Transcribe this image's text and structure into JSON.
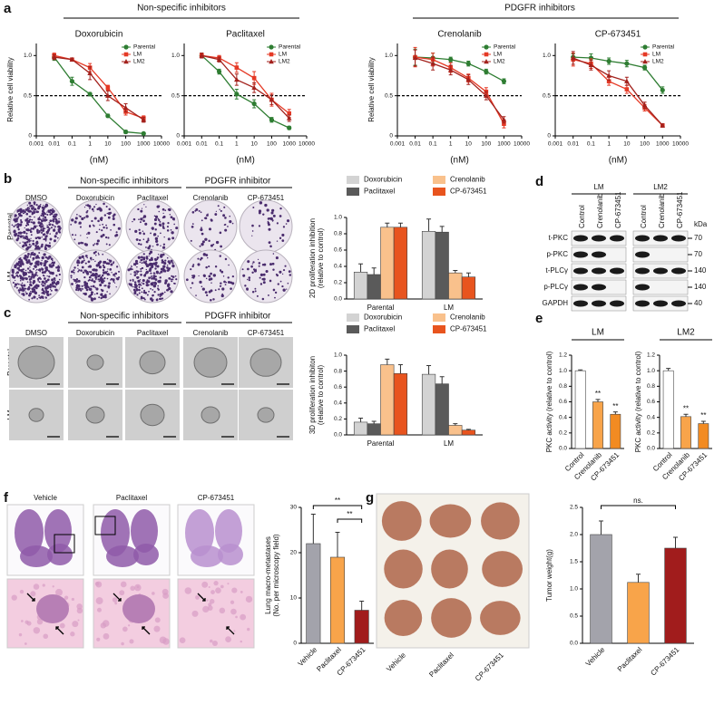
{
  "panel_labels": [
    "a",
    "b",
    "c",
    "d",
    "e",
    "f",
    "g"
  ],
  "panel_a_groups": [
    "Non-specific inhibitors",
    "PDGFR inhibitors"
  ],
  "panel_b_images": {
    "groups": [
      "Non-specific inhibitors",
      "PDGFR inhibitor"
    ],
    "columns": [
      "DMSO",
      "Doxorubicin",
      "Paclitaxel",
      "Crenolanib",
      "CP-673451"
    ],
    "rows": [
      "Parental",
      "LM"
    ]
  },
  "panel_c_images": {
    "groups": [
      "Non-specific inhibitors",
      "PDGFR inhibitor"
    ],
    "columns": [
      "DMSO",
      "Doxorubicin",
      "Paclitaxel",
      "Crenolanib",
      "CP-673451"
    ],
    "rows": [
      "Parental",
      "LM"
    ]
  },
  "panel_d_blot": {
    "groups": [
      "LM",
      "LM2"
    ],
    "columns": [
      "Control",
      "Crenolanib",
      "CP-673451"
    ],
    "rows": [
      "t-PKC",
      "p-PKC",
      "t-PLCγ",
      "p-PLCγ",
      "GAPDH"
    ],
    "unit": "kDa",
    "sizes": [
      70,
      70,
      140,
      140,
      40
    ]
  },
  "panel_f_images": {
    "columns": [
      "Vehicle",
      "Paclitaxel",
      "CP-673451"
    ]
  },
  "panel_g_image": {
    "columns": [
      "Vehicle",
      "Paclitaxel",
      "CP-673451"
    ]
  },
  "chart_data": [
    {
      "type": "line",
      "title": "Doxorubicin",
      "xlabel": "(nM)",
      "ylabel": "Relative cell viability",
      "xscale": "log",
      "x": [
        0.01,
        0.1,
        1,
        10,
        100,
        1000
      ],
      "xlim": [
        0.001,
        10000
      ],
      "xticks": [
        0.001,
        0.01,
        0.1,
        1,
        10,
        100,
        1000,
        10000
      ],
      "ylim": [
        0,
        1.15
      ],
      "yticks": [
        0,
        0.5,
        {
          "value": 1,
          "label": "1.0"
        }
      ],
      "reference_line": 0.5,
      "legend": "upper right",
      "series": [
        {
          "name": "Parental",
          "color": "#2e7d32",
          "marker": "circle",
          "values": [
            0.98,
            0.68,
            0.52,
            0.25,
            0.05,
            0.03
          ],
          "errors": [
            0.04,
            0.05,
            0.02,
            0.02,
            0.02,
            0.01
          ]
        },
        {
          "name": "LM",
          "color": "#e53925",
          "marker": "square",
          "values": [
            1.0,
            0.95,
            0.85,
            0.6,
            0.3,
            0.22
          ],
          "errors": [
            0.03,
            0.02,
            0.05,
            0.03,
            0.04,
            0.03
          ]
        },
        {
          "name": "LM2",
          "color": "#a3211c",
          "marker": "triangle",
          "values": [
            0.98,
            0.95,
            0.78,
            0.5,
            0.35,
            0.2
          ],
          "errors": [
            0.03,
            0.02,
            0.08,
            0.06,
            0.05,
            0.03
          ]
        }
      ]
    },
    {
      "type": "line",
      "title": "Paclitaxel",
      "xlabel": "(nM)",
      "xscale": "log",
      "x": [
        0.01,
        0.1,
        1,
        10,
        100,
        1000
      ],
      "xlim": [
        0.001,
        10000
      ],
      "xticks": [
        0.001,
        0.01,
        0.1,
        1,
        10,
        100,
        1000,
        10000
      ],
      "ylim": [
        0,
        1.15
      ],
      "yticks": [
        0,
        0.5,
        {
          "value": 1,
          "label": "1.0"
        }
      ],
      "reference_line": 0.5,
      "legend": "upper right",
      "series": [
        {
          "name": "Parental",
          "color": "#2e7d32",
          "marker": "circle",
          "values": [
            1.0,
            0.8,
            0.52,
            0.4,
            0.2,
            0.1
          ],
          "errors": [
            0.03,
            0.03,
            0.06,
            0.05,
            0.03,
            0.02
          ]
        },
        {
          "name": "LM",
          "color": "#e53925",
          "marker": "square",
          "values": [
            1.0,
            0.97,
            0.85,
            0.72,
            0.45,
            0.28
          ],
          "errors": [
            0.03,
            0.03,
            0.06,
            0.08,
            0.08,
            0.05
          ]
        },
        {
          "name": "LM2",
          "color": "#a3211c",
          "marker": "triangle",
          "values": [
            1.0,
            0.95,
            0.7,
            0.6,
            0.45,
            0.22
          ],
          "errors": [
            0.03,
            0.03,
            0.07,
            0.06,
            0.06,
            0.04
          ]
        }
      ]
    },
    {
      "type": "line",
      "title": "Crenolanib",
      "xlabel": "(nM)",
      "ylabel": "Relative cell viability",
      "xscale": "log",
      "x": [
        0.01,
        0.1,
        1,
        10,
        100,
        1000
      ],
      "xlim": [
        0.001,
        10000
      ],
      "xticks": [
        0.001,
        0.01,
        0.1,
        1,
        10,
        100,
        1000,
        10000
      ],
      "ylim": [
        0,
        1.15
      ],
      "yticks": [
        0,
        0.5,
        {
          "value": 1,
          "label": "1.0"
        }
      ],
      "reference_line": 0.5,
      "legend": "upper right",
      "series": [
        {
          "name": "Parental",
          "color": "#2e7d32",
          "marker": "circle",
          "values": [
            0.98,
            0.97,
            0.95,
            0.9,
            0.8,
            0.68
          ],
          "errors": [
            0.1,
            0.06,
            0.03,
            0.03,
            0.03,
            0.03
          ]
        },
        {
          "name": "LM",
          "color": "#e53925",
          "marker": "square",
          "values": [
            0.98,
            0.95,
            0.85,
            0.72,
            0.55,
            0.15
          ],
          "errors": [
            0.12,
            0.08,
            0.06,
            0.05,
            0.05,
            0.05
          ]
        },
        {
          "name": "LM2",
          "color": "#a3211c",
          "marker": "triangle",
          "values": [
            0.97,
            0.9,
            0.82,
            0.7,
            0.5,
            0.2
          ],
          "errors": [
            0.1,
            0.08,
            0.06,
            0.06,
            0.05,
            0.04
          ]
        }
      ]
    },
    {
      "type": "line",
      "title": "CP-673451",
      "xlabel": "(nM)",
      "xscale": "log",
      "x": [
        0.01,
        0.1,
        1,
        10,
        100,
        1000
      ],
      "xlim": [
        0.001,
        10000
      ],
      "xticks": [
        0.001,
        0.01,
        0.1,
        1,
        10,
        100,
        1000,
        10000
      ],
      "ylim": [
        0,
        1.15
      ],
      "yticks": [
        0,
        0.5,
        {
          "value": 1,
          "label": "1.0"
        }
      ],
      "reference_line": 0.5,
      "legend": "upper right",
      "series": [
        {
          "name": "Parental",
          "color": "#2e7d32",
          "marker": "circle",
          "values": [
            0.98,
            0.97,
            0.93,
            0.9,
            0.85,
            0.57
          ],
          "errors": [
            0.04,
            0.05,
            0.04,
            0.04,
            0.03,
            0.04
          ]
        },
        {
          "name": "LM",
          "color": "#e53925",
          "marker": "square",
          "values": [
            0.95,
            0.9,
            0.68,
            0.58,
            0.35,
            0.13
          ],
          "errors": [
            0.08,
            0.06,
            0.05,
            0.05,
            0.04,
            0.02
          ]
        },
        {
          "name": "LM2",
          "color": "#a3211c",
          "marker": "triangle",
          "values": [
            0.97,
            0.88,
            0.75,
            0.68,
            0.38,
            0.13
          ],
          "errors": [
            0.08,
            0.06,
            0.06,
            0.05,
            0.04,
            0.02
          ]
        }
      ]
    },
    {
      "type": "bar",
      "ylabel": [
        "2D proliferation inhibition",
        "(relative to control)"
      ],
      "categories": [
        "Parental",
        "LM"
      ],
      "ylim": [
        0,
        1
      ],
      "yticks": [
        {
          "value": 0,
          "label": "0.0"
        },
        0.2,
        0.4,
        0.6,
        0.8,
        {
          "value": 1,
          "label": "1.0"
        }
      ],
      "legend": "top",
      "series": [
        {
          "name": "Doxorubicin",
          "color": "#d3d3d3",
          "values": [
            0.33,
            0.83
          ],
          "errors": [
            0.1,
            0.15
          ]
        },
        {
          "name": "Paclitaxel",
          "color": "#5a5a5a",
          "values": [
            0.3,
            0.82
          ],
          "errors": [
            0.08,
            0.07
          ]
        },
        {
          "name": "Crenolanib",
          "color": "#f9c18c",
          "values": [
            0.88,
            0.32
          ],
          "errors": [
            0.05,
            0.03
          ]
        },
        {
          "name": "CP-673451",
          "color": "#e8541e",
          "values": [
            0.88,
            0.27
          ],
          "errors": [
            0.05,
            0.05
          ]
        }
      ]
    },
    {
      "type": "bar",
      "ylabel": [
        "3D proliferation inhibiton",
        "(relative to control)"
      ],
      "categories": [
        "Parental",
        "LM"
      ],
      "ylim": [
        0,
        1
      ],
      "yticks": [
        {
          "value": 0,
          "label": "0.0"
        },
        0.2,
        0.4,
        0.6,
        0.8,
        {
          "value": 1,
          "label": "1.0"
        }
      ],
      "legend": "top",
      "series": [
        {
          "name": "Doxorubicin",
          "color": "#d3d3d3",
          "values": [
            0.16,
            0.76
          ],
          "errors": [
            0.05,
            0.11
          ]
        },
        {
          "name": "Paclitaxel",
          "color": "#5a5a5a",
          "values": [
            0.14,
            0.64
          ],
          "errors": [
            0.03,
            0.09
          ]
        },
        {
          "name": "Crenolanib",
          "color": "#f9c18c",
          "values": [
            0.88,
            0.12
          ],
          "errors": [
            0.07,
            0.02
          ]
        },
        {
          "name": "CP-673451",
          "color": "#e8541e",
          "values": [
            0.77,
            0.06
          ],
          "errors": [
            0.11,
            0.01
          ]
        }
      ]
    },
    {
      "type": "bar",
      "title": "LM",
      "ylabel": "PKC activity (relative to control)",
      "categories": [
        "Control",
        "Crenolanib",
        "CP-673451"
      ],
      "values": [
        1.0,
        0.6,
        0.44
      ],
      "errors": [
        0.01,
        0.03,
        0.03
      ],
      "colors": [
        "#ffffff",
        "#f8a44a",
        "#f28b22"
      ],
      "significance": [
        null,
        "**",
        "**"
      ],
      "ylim": [
        0,
        1.2
      ],
      "yticks": [
        {
          "value": 0,
          "label": "0.0"
        },
        0.2,
        0.4,
        0.6,
        0.8,
        {
          "value": 1,
          "label": "1.0"
        },
        1.2
      ]
    },
    {
      "type": "bar",
      "title": "LM2",
      "ylabel": "PKC activity (relative to control)",
      "categories": [
        "Control",
        "Crenolanib",
        "CP-673451"
      ],
      "values": [
        1.0,
        0.41,
        0.32
      ],
      "errors": [
        0.03,
        0.03,
        0.03
      ],
      "colors": [
        "#ffffff",
        "#f8a44a",
        "#f28b22"
      ],
      "significance": [
        null,
        "**",
        "**"
      ],
      "ylim": [
        0,
        1.2
      ],
      "yticks": [
        {
          "value": 0,
          "label": "0.0"
        },
        0.2,
        0.4,
        0.6,
        0.8,
        {
          "value": 1,
          "label": "1.0"
        },
        1.2
      ]
    },
    {
      "type": "bar",
      "ylabel": [
        "Lung macro-metastases",
        "(No. per microscopy field)"
      ],
      "categories": [
        "Vehicle",
        "Paclitaxel",
        "CP-673451"
      ],
      "values": [
        22,
        19,
        7.3
      ],
      "errors": [
        6.5,
        5.5,
        2
      ],
      "colors": [
        "#a3a3ab",
        "#f8a44a",
        "#a11c1c"
      ],
      "ylim": [
        0,
        30
      ],
      "yticks": [
        0,
        10,
        20,
        30
      ],
      "comparisons": [
        {
          "pair": [
            "Vehicle",
            "CP-673451"
          ],
          "label": "**"
        },
        {
          "pair": [
            "Paclitaxel",
            "CP-673451"
          ],
          "label": "**"
        }
      ]
    },
    {
      "type": "bar",
      "ylabel": "Tumor weight(g)",
      "categories": [
        "Vehicle",
        "Paclitaxel",
        "CP-673451"
      ],
      "values": [
        2.0,
        1.12,
        1.75
      ],
      "errors": [
        0.25,
        0.15,
        0.2
      ],
      "colors": [
        "#a3a3ab",
        "#f8a44a",
        "#a11c1c"
      ],
      "ylim": [
        0,
        2.5
      ],
      "yticks": [
        {
          "value": 0,
          "label": "0.0"
        },
        0.5,
        {
          "value": 1,
          "label": "1.0"
        },
        1.5,
        {
          "value": 2,
          "label": "2.0"
        },
        2.5
      ],
      "comparisons": [
        {
          "pair": [
            "Vehicle",
            "CP-673451"
          ],
          "label": "ns."
        }
      ]
    }
  ]
}
